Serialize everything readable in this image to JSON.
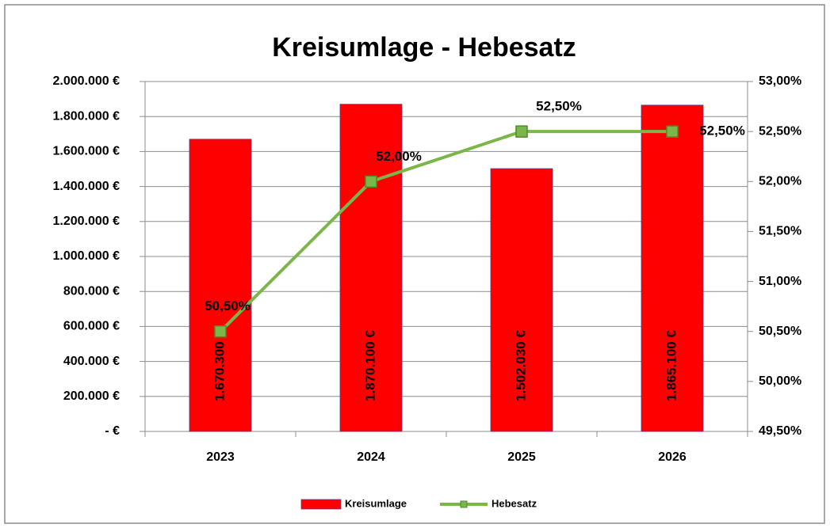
{
  "chart_data": {
    "type": "bar",
    "title": "Kreisumlage - Hebesatz",
    "categories": [
      "2023",
      "2024",
      "2025",
      "2026"
    ],
    "series": [
      {
        "name": "Kreisumlage",
        "type": "bar",
        "color": "#ff0000",
        "values": [
          1670300,
          1870100,
          1502030,
          1865100
        ],
        "value_labels": [
          "1.670.300 €",
          "1.870.100 €",
          "1.502.030 €",
          "1.865.100 €"
        ]
      },
      {
        "name": "Hebesatz",
        "type": "line",
        "axis": "y2",
        "color": "#7ab648",
        "values": [
          50.5,
          52.0,
          52.5,
          52.5
        ],
        "value_labels": [
          "50,50%",
          "52,00%",
          "52,50%",
          "52,50%"
        ]
      }
    ],
    "ylim": [
      0,
      2000000
    ],
    "yticks": [
      {
        "value": 0,
        "label": "-   €"
      },
      {
        "value": 200000,
        "label": "200.000 €"
      },
      {
        "value": 400000,
        "label": "400.000 €"
      },
      {
        "value": 600000,
        "label": "600.000 €"
      },
      {
        "value": 800000,
        "label": "800.000 €"
      },
      {
        "value": 1000000,
        "label": "1.000.000 €"
      },
      {
        "value": 1200000,
        "label": "1.200.000 €"
      },
      {
        "value": 1400000,
        "label": "1.400.000 €"
      },
      {
        "value": 1600000,
        "label": "1.600.000 €"
      },
      {
        "value": 1800000,
        "label": "1.800.000 €"
      },
      {
        "value": 2000000,
        "label": "2.000.000 €"
      }
    ],
    "y2lim": [
      49.5,
      53
    ],
    "y2ticks": [
      {
        "value": 49.5,
        "label": "49,50%"
      },
      {
        "value": 50,
        "label": "50,00%"
      },
      {
        "value": 50.5,
        "label": "50,50%"
      },
      {
        "value": 51,
        "label": "51,00%"
      },
      {
        "value": 51.5,
        "label": "51,50%"
      },
      {
        "value": 52,
        "label": "52,00%"
      },
      {
        "value": 52.5,
        "label": "52,50%"
      },
      {
        "value": 53,
        "label": "53,00%"
      }
    ],
    "grid": true,
    "legend": "bottom"
  }
}
